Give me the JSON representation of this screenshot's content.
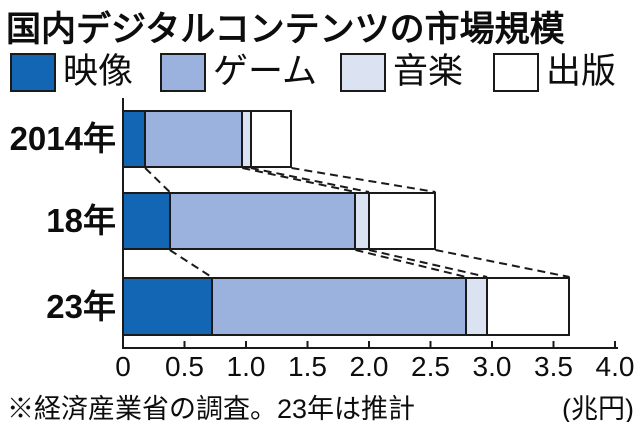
{
  "title": "国内デジタルコンテンツの市場規模",
  "legend": {
    "items": [
      {
        "label": "映像",
        "color": "#1266b4"
      },
      {
        "label": "ゲーム",
        "color": "#9bb2de"
      },
      {
        "label": "音楽",
        "color": "#dbe3f3"
      },
      {
        "label": "出版",
        "color": "#ffffff"
      }
    ]
  },
  "chart_data": {
    "type": "bar",
    "orientation": "horizontal-stacked",
    "title": "国内デジタルコンテンツの市場規模",
    "categories": [
      "2014年",
      "18年",
      "23年"
    ],
    "series": [
      {
        "name": "映像",
        "color": "#1266b4",
        "values": [
          0.18,
          0.38,
          0.72
        ]
      },
      {
        "name": "ゲーム",
        "color": "#9bb2de",
        "values": [
          0.79,
          1.51,
          2.07
        ]
      },
      {
        "name": "音楽",
        "color": "#dbe3f3",
        "values": [
          0.07,
          0.11,
          0.17
        ]
      },
      {
        "name": "出版",
        "color": "#ffffff",
        "values": [
          0.33,
          0.54,
          0.67
        ]
      }
    ],
    "totals": [
      1.37,
      2.54,
      3.63
    ],
    "xlim": [
      0,
      4.0
    ],
    "x_ticks": [
      "0",
      "0.5",
      "1.0",
      "1.5",
      "2.0",
      "2.5",
      "3.0",
      "3.5",
      "4.0"
    ],
    "unit": "(兆円)",
    "note": "※経済産業省の調査。23年は推計",
    "grid": false,
    "legend_position": "top",
    "connectors": "dashed lines join segment boundaries of consecutive bars",
    "axis_color": "#1a1a1a"
  },
  "footer": {
    "note": "※経済産業省の調査。23年は推計",
    "unit": "(兆円)"
  }
}
